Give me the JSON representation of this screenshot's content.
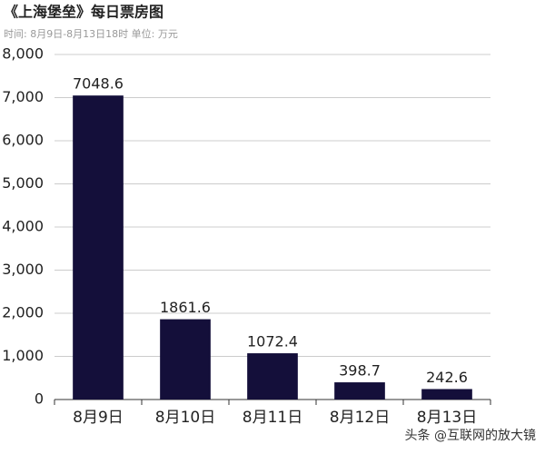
{
  "chart_data": {
    "type": "bar",
    "title": "《上海堡垒》每日票房图",
    "subtitle": "时间: 8月9日-8月13日18时 单位: 万元",
    "categories": [
      "8月9日",
      "8月10日",
      "8月11日",
      "8月12日",
      "8月13日"
    ],
    "values": [
      7048.6,
      1861.6,
      1072.4,
      398.7,
      242.6
    ],
    "color": "#140f3a",
    "ylim": [
      0,
      8000
    ],
    "yticks": [
      0,
      {
        "value": 1000,
        "label": "1,000"
      },
      {
        "value": 2000,
        "label": "2,000"
      },
      {
        "value": 3000,
        "label": "3,000"
      },
      {
        "value": 4000,
        "label": "4,000"
      },
      {
        "value": 5000,
        "label": "5,000"
      },
      {
        "value": 6000,
        "label": "6,000"
      },
      {
        "value": 7000,
        "label": "7,000"
      },
      {
        "value": 8000,
        "label": "8,000"
      }
    ],
    "grid": true,
    "watermark": "头条 @互联网的放大镜"
  }
}
